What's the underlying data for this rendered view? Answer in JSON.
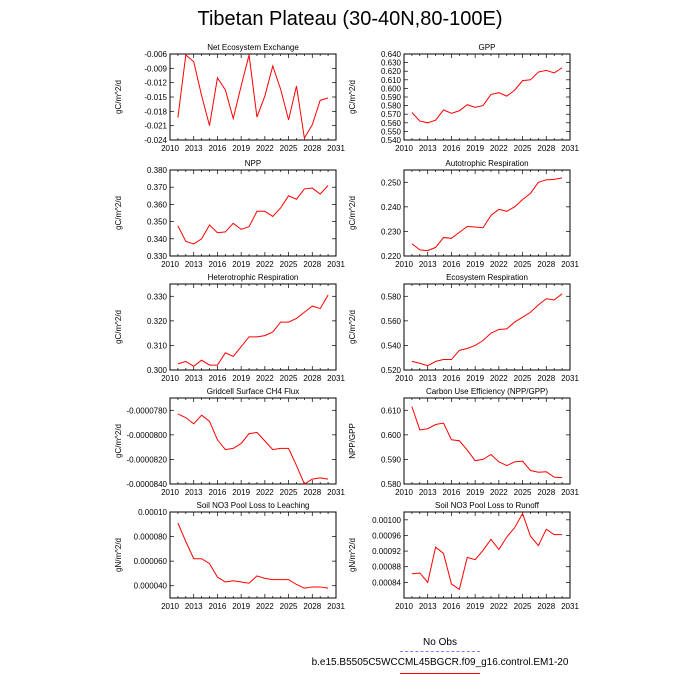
{
  "page_title": "Tibetan Plateau (30-40N,80-100E)",
  "legend": {
    "items": [
      {
        "label": "No Obs",
        "color": "#7f7fff",
        "style": "dashed"
      },
      {
        "label": "b.e15.B5505C5WCCML45BGCR.f09_g16.control.EM1-20",
        "color": "#ff0000",
        "style": "solid"
      }
    ]
  },
  "line_color": "#ff0000",
  "chart_data": [
    {
      "type": "line",
      "title": "Net Ecosystem Exchange",
      "ylabel": "gC/m^2/d",
      "xlabel": "",
      "xlim": [
        2010,
        2031
      ],
      "ylim": [
        -0.024,
        -0.006
      ],
      "xticks": [
        "2010",
        "2013",
        "2016",
        "2019",
        "2022",
        "2025",
        "2028",
        "2031"
      ],
      "yticks": [
        "-0.024",
        "-0.021",
        "-0.018",
        "-0.015",
        "-0.012",
        "-0.009",
        "-0.006"
      ],
      "x": [
        2011,
        2012,
        2013,
        2014,
        2015,
        2016,
        2017,
        2018,
        2019,
        2020,
        2021,
        2022,
        2023,
        2024,
        2025,
        2026,
        2027,
        2028,
        2029,
        2030
      ],
      "series": [
        {
          "values": [
            -0.0193,
            -0.0062,
            -0.0076,
            -0.0147,
            -0.021,
            -0.011,
            -0.0135,
            -0.0195,
            -0.0127,
            -0.0062,
            -0.0192,
            -0.0148,
            -0.0085,
            -0.0134,
            -0.0198,
            -0.0127,
            -0.0236,
            -0.0208,
            -0.0157,
            -0.0152
          ]
        }
      ]
    },
    {
      "type": "line",
      "title": "GPP",
      "ylabel": "gC/m^2/d",
      "xlabel": "",
      "xlim": [
        2010,
        2031
      ],
      "ylim": [
        0.54,
        0.64
      ],
      "xticks": [
        "2010",
        "2013",
        "2016",
        "2019",
        "2022",
        "2025",
        "2028",
        "2031"
      ],
      "yticks": [
        "0.540",
        "0.550",
        "0.560",
        "0.570",
        "0.580",
        "0.590",
        "0.600",
        "0.610",
        "0.620",
        "0.630",
        "0.640"
      ],
      "x": [
        2011,
        2012,
        2013,
        2014,
        2015,
        2016,
        2017,
        2018,
        2019,
        2020,
        2021,
        2022,
        2023,
        2024,
        2025,
        2026,
        2027,
        2028,
        2029,
        2030
      ],
      "series": [
        {
          "values": [
            0.572,
            0.562,
            0.56,
            0.563,
            0.575,
            0.571,
            0.574,
            0.581,
            0.578,
            0.58,
            0.593,
            0.595,
            0.591,
            0.598,
            0.609,
            0.61,
            0.619,
            0.621,
            0.618,
            0.624
          ]
        }
      ]
    },
    {
      "type": "line",
      "title": "NPP",
      "ylabel": "gC/m^2/d",
      "xlabel": "",
      "xlim": [
        2010,
        2031
      ],
      "ylim": [
        0.33,
        0.38
      ],
      "xticks": [
        "2010",
        "2013",
        "2016",
        "2019",
        "2022",
        "2025",
        "2028",
        "2031"
      ],
      "yticks": [
        "0.330",
        "0.340",
        "0.350",
        "0.360",
        "0.370",
        "0.380"
      ],
      "x": [
        2011,
        2012,
        2013,
        2014,
        2015,
        2016,
        2017,
        2018,
        2019,
        2020,
        2021,
        2022,
        2023,
        2024,
        2025,
        2026,
        2027,
        2028,
        2029,
        2030
      ],
      "series": [
        {
          "values": [
            0.3475,
            0.3385,
            0.337,
            0.34,
            0.348,
            0.3435,
            0.344,
            0.349,
            0.3455,
            0.347,
            0.356,
            0.356,
            0.353,
            0.358,
            0.365,
            0.363,
            0.369,
            0.3695,
            0.366,
            0.371
          ]
        }
      ]
    },
    {
      "type": "line",
      "title": "Autotrophic Respiration",
      "ylabel": "gC/m^2/d",
      "xlabel": "",
      "xlim": [
        2010,
        2031
      ],
      "ylim": [
        0.22,
        0.255
      ],
      "xticks": [
        "2010",
        "2013",
        "2016",
        "2019",
        "2022",
        "2025",
        "2028",
        "2031"
      ],
      "yticks": [
        "0.220",
        "0.230",
        "0.240",
        "0.250"
      ],
      "x": [
        2011,
        2012,
        2013,
        2014,
        2015,
        2016,
        2017,
        2018,
        2019,
        2020,
        2021,
        2022,
        2023,
        2024,
        2025,
        2026,
        2027,
        2028,
        2029,
        2030
      ],
      "series": [
        {
          "values": [
            0.225,
            0.2225,
            0.2222,
            0.2235,
            0.2275,
            0.2272,
            0.2296,
            0.232,
            0.2318,
            0.2315,
            0.2365,
            0.239,
            0.2382,
            0.24,
            0.243,
            0.2455,
            0.25,
            0.251,
            0.2512,
            0.2518
          ]
        }
      ]
    },
    {
      "type": "line",
      "title": "Heterotrophic Respiration",
      "ylabel": "gC/m^2/d",
      "xlabel": "",
      "xlim": [
        2010,
        2031
      ],
      "ylim": [
        0.3,
        0.335
      ],
      "xticks": [
        "2010",
        "2013",
        "2016",
        "2019",
        "2022",
        "2025",
        "2028",
        "2031"
      ],
      "yticks": [
        "0.300",
        "0.310",
        "0.320",
        "0.330"
      ],
      "x": [
        2011,
        2012,
        2013,
        2014,
        2015,
        2016,
        2017,
        2018,
        2019,
        2020,
        2021,
        2022,
        2023,
        2024,
        2025,
        2026,
        2027,
        2028,
        2029,
        2030
      ],
      "series": [
        {
          "values": [
            0.3025,
            0.3035,
            0.3015,
            0.304,
            0.302,
            0.302,
            0.307,
            0.3055,
            0.3095,
            0.3135,
            0.3135,
            0.314,
            0.3155,
            0.3195,
            0.3195,
            0.321,
            0.3235,
            0.326,
            0.325,
            0.3305
          ]
        }
      ]
    },
    {
      "type": "line",
      "title": "Ecosystem Respiration",
      "ylabel": "gC/m^2/d",
      "xlabel": "",
      "xlim": [
        2010,
        2031
      ],
      "ylim": [
        0.52,
        0.59
      ],
      "xticks": [
        "2010",
        "2013",
        "2016",
        "2019",
        "2022",
        "2025",
        "2028",
        "2031"
      ],
      "yticks": [
        "0.520",
        "0.540",
        "0.560",
        "0.580"
      ],
      "x": [
        2011,
        2012,
        2013,
        2014,
        2015,
        2016,
        2017,
        2018,
        2019,
        2020,
        2021,
        2022,
        2023,
        2024,
        2025,
        2026,
        2027,
        2028,
        2029,
        2030
      ],
      "series": [
        {
          "values": [
            0.527,
            0.5255,
            0.5235,
            0.527,
            0.5285,
            0.5285,
            0.536,
            0.5375,
            0.54,
            0.544,
            0.55,
            0.553,
            0.5535,
            0.559,
            0.563,
            0.567,
            0.573,
            0.578,
            0.577,
            0.582
          ]
        }
      ]
    },
    {
      "type": "line",
      "title": "Gridcell Surface CH4 Flux",
      "ylabel": "gC/m^2/d",
      "xlabel": "",
      "xlim": [
        2010,
        2031
      ],
      "ylim": [
        -8.4e-05,
        -7.7e-05
      ],
      "xticks": [
        "2010",
        "2013",
        "2016",
        "2019",
        "2022",
        "2025",
        "2028",
        "2031"
      ],
      "yticks": [
        "-0.0000840",
        "-0.0000820",
        "-0.0000800",
        "-0.0000780"
      ],
      "x": [
        2011,
        2012,
        2013,
        2014,
        2015,
        2016,
        2017,
        2018,
        2019,
        2020,
        2021,
        2022,
        2023,
        2024,
        2025,
        2026,
        2027,
        2028,
        2029,
        2030
      ],
      "series": [
        {
          "values": [
            -7.83e-05,
            -7.86e-05,
            -7.91e-05,
            -7.84e-05,
            -7.89e-05,
            -8.04e-05,
            -8.12e-05,
            -8.11e-05,
            -8.07e-05,
            -7.99e-05,
            -7.98e-05,
            -8.05e-05,
            -8.12e-05,
            -8.11e-05,
            -8.11e-05,
            -8.25e-05,
            -8.4e-05,
            -8.36e-05,
            -8.35e-05,
            -8.36e-05
          ]
        }
      ]
    },
    {
      "type": "line",
      "title": "Carbon Use Efficiency (NPP/GPP)",
      "ylabel": "NPP/GPP",
      "xlabel": "",
      "xlim": [
        2010,
        2031
      ],
      "ylim": [
        0.58,
        0.615
      ],
      "xticks": [
        "2010",
        "2013",
        "2016",
        "2019",
        "2022",
        "2025",
        "2028",
        "2031"
      ],
      "yticks": [
        "0.580",
        "0.590",
        "0.600",
        "0.610"
      ],
      "x": [
        2011,
        2012,
        2013,
        2014,
        2015,
        2016,
        2017,
        2018,
        2019,
        2020,
        2021,
        2022,
        2023,
        2024,
        2025,
        2026,
        2027,
        2028,
        2029,
        2030
      ],
      "series": [
        {
          "values": [
            0.6115,
            0.602,
            0.6025,
            0.6042,
            0.6048,
            0.598,
            0.5976,
            0.5938,
            0.5895,
            0.59,
            0.592,
            0.589,
            0.5875,
            0.589,
            0.5893,
            0.5855,
            0.5848,
            0.585,
            0.5828,
            0.5826
          ]
        }
      ]
    },
    {
      "type": "line",
      "title": "Soil NO3 Pool Loss to Leaching",
      "ylabel": "gN/m^2/d",
      "xlabel": "",
      "xlim": [
        2010,
        2031
      ],
      "ylim": [
        3e-05,
        0.0001
      ],
      "xticks": [
        "2010",
        "2013",
        "2016",
        "2019",
        "2022",
        "2025",
        "2028",
        "2031"
      ],
      "yticks": [
        "0.000040",
        "0.000060",
        "0.000080",
        "0.00010"
      ],
      "x": [
        2011,
        2012,
        2013,
        2014,
        2015,
        2016,
        2017,
        2018,
        2019,
        2020,
        2021,
        2022,
        2023,
        2024,
        2025,
        2026,
        2027,
        2028,
        2029,
        2030
      ],
      "series": [
        {
          "values": [
            9.1e-05,
            7.6e-05,
            6.2e-05,
            6.2e-05,
            5.8e-05,
            4.7e-05,
            4.3e-05,
            4.4e-05,
            4.3e-05,
            4.2e-05,
            4.8e-05,
            4.6e-05,
            4.5e-05,
            4.5e-05,
            4.5e-05,
            4.1e-05,
            3.8e-05,
            3.9e-05,
            3.9e-05,
            3.8e-05
          ]
        }
      ]
    },
    {
      "type": "line",
      "title": "Soil NO3 Pool Loss to Runoff",
      "ylabel": "gN/m^2/d",
      "xlabel": "",
      "xlim": [
        2010,
        2031
      ],
      "ylim": [
        0.0008,
        0.00102
      ],
      "xticks": [
        "2010",
        "2013",
        "2016",
        "2019",
        "2022",
        "2025",
        "2028",
        "2031"
      ],
      "yticks": [
        "0.00084",
        "0.00088",
        "0.00092",
        "0.00096",
        "0.00100"
      ],
      "x": [
        2011,
        2012,
        2013,
        2014,
        2015,
        2016,
        2017,
        2018,
        2019,
        2020,
        2021,
        2022,
        2023,
        2024,
        2025,
        2026,
        2027,
        2028,
        2029,
        2030
      ],
      "series": [
        {
          "values": [
            0.000862,
            0.000864,
            0.00084,
            0.00093,
            0.000914,
            0.000836,
            0.000822,
            0.000904,
            0.000898,
            0.000922,
            0.00095,
            0.000924,
            0.000956,
            0.00098,
            0.001016,
            0.000958,
            0.000934,
            0.000976,
            0.000962,
            0.000962
          ]
        }
      ]
    }
  ]
}
